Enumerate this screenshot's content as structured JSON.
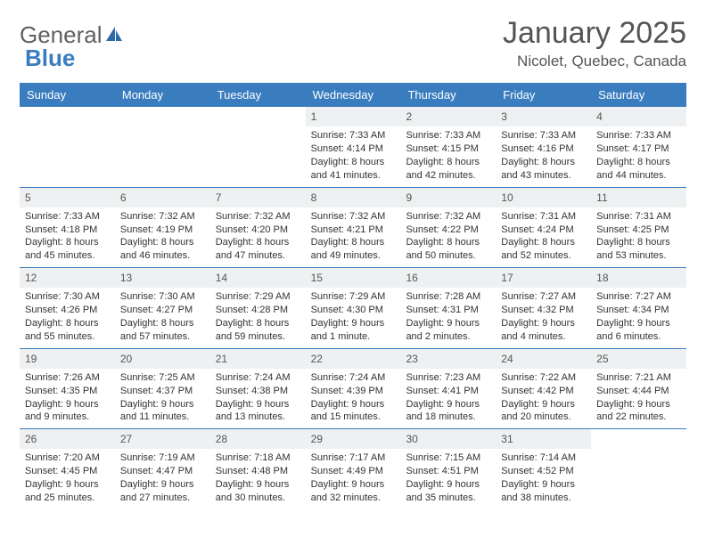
{
  "logo": {
    "textA": "General",
    "textB": "Blue"
  },
  "title": "January 2025",
  "location": "Nicolet, Quebec, Canada",
  "colors": {
    "header_bg": "#3a7dbf",
    "header_text": "#ffffff",
    "daynum_bg": "#eef0f1",
    "row_border": "#3a7dbf",
    "body_text": "#333333",
    "title_text": "#555555"
  },
  "daysOfWeek": [
    "Sunday",
    "Monday",
    "Tuesday",
    "Wednesday",
    "Thursday",
    "Friday",
    "Saturday"
  ],
  "weeks": [
    [
      null,
      null,
      null,
      {
        "d": "1",
        "sr": "Sunrise: 7:33 AM",
        "ss": "Sunset: 4:14 PM",
        "dl1": "Daylight: 8 hours",
        "dl2": "and 41 minutes."
      },
      {
        "d": "2",
        "sr": "Sunrise: 7:33 AM",
        "ss": "Sunset: 4:15 PM",
        "dl1": "Daylight: 8 hours",
        "dl2": "and 42 minutes."
      },
      {
        "d": "3",
        "sr": "Sunrise: 7:33 AM",
        "ss": "Sunset: 4:16 PM",
        "dl1": "Daylight: 8 hours",
        "dl2": "and 43 minutes."
      },
      {
        "d": "4",
        "sr": "Sunrise: 7:33 AM",
        "ss": "Sunset: 4:17 PM",
        "dl1": "Daylight: 8 hours",
        "dl2": "and 44 minutes."
      }
    ],
    [
      {
        "d": "5",
        "sr": "Sunrise: 7:33 AM",
        "ss": "Sunset: 4:18 PM",
        "dl1": "Daylight: 8 hours",
        "dl2": "and 45 minutes."
      },
      {
        "d": "6",
        "sr": "Sunrise: 7:32 AM",
        "ss": "Sunset: 4:19 PM",
        "dl1": "Daylight: 8 hours",
        "dl2": "and 46 minutes."
      },
      {
        "d": "7",
        "sr": "Sunrise: 7:32 AM",
        "ss": "Sunset: 4:20 PM",
        "dl1": "Daylight: 8 hours",
        "dl2": "and 47 minutes."
      },
      {
        "d": "8",
        "sr": "Sunrise: 7:32 AM",
        "ss": "Sunset: 4:21 PM",
        "dl1": "Daylight: 8 hours",
        "dl2": "and 49 minutes."
      },
      {
        "d": "9",
        "sr": "Sunrise: 7:32 AM",
        "ss": "Sunset: 4:22 PM",
        "dl1": "Daylight: 8 hours",
        "dl2": "and 50 minutes."
      },
      {
        "d": "10",
        "sr": "Sunrise: 7:31 AM",
        "ss": "Sunset: 4:24 PM",
        "dl1": "Daylight: 8 hours",
        "dl2": "and 52 minutes."
      },
      {
        "d": "11",
        "sr": "Sunrise: 7:31 AM",
        "ss": "Sunset: 4:25 PM",
        "dl1": "Daylight: 8 hours",
        "dl2": "and 53 minutes."
      }
    ],
    [
      {
        "d": "12",
        "sr": "Sunrise: 7:30 AM",
        "ss": "Sunset: 4:26 PM",
        "dl1": "Daylight: 8 hours",
        "dl2": "and 55 minutes."
      },
      {
        "d": "13",
        "sr": "Sunrise: 7:30 AM",
        "ss": "Sunset: 4:27 PM",
        "dl1": "Daylight: 8 hours",
        "dl2": "and 57 minutes."
      },
      {
        "d": "14",
        "sr": "Sunrise: 7:29 AM",
        "ss": "Sunset: 4:28 PM",
        "dl1": "Daylight: 8 hours",
        "dl2": "and 59 minutes."
      },
      {
        "d": "15",
        "sr": "Sunrise: 7:29 AM",
        "ss": "Sunset: 4:30 PM",
        "dl1": "Daylight: 9 hours",
        "dl2": "and 1 minute."
      },
      {
        "d": "16",
        "sr": "Sunrise: 7:28 AM",
        "ss": "Sunset: 4:31 PM",
        "dl1": "Daylight: 9 hours",
        "dl2": "and 2 minutes."
      },
      {
        "d": "17",
        "sr": "Sunrise: 7:27 AM",
        "ss": "Sunset: 4:32 PM",
        "dl1": "Daylight: 9 hours",
        "dl2": "and 4 minutes."
      },
      {
        "d": "18",
        "sr": "Sunrise: 7:27 AM",
        "ss": "Sunset: 4:34 PM",
        "dl1": "Daylight: 9 hours",
        "dl2": "and 6 minutes."
      }
    ],
    [
      {
        "d": "19",
        "sr": "Sunrise: 7:26 AM",
        "ss": "Sunset: 4:35 PM",
        "dl1": "Daylight: 9 hours",
        "dl2": "and 9 minutes."
      },
      {
        "d": "20",
        "sr": "Sunrise: 7:25 AM",
        "ss": "Sunset: 4:37 PM",
        "dl1": "Daylight: 9 hours",
        "dl2": "and 11 minutes."
      },
      {
        "d": "21",
        "sr": "Sunrise: 7:24 AM",
        "ss": "Sunset: 4:38 PM",
        "dl1": "Daylight: 9 hours",
        "dl2": "and 13 minutes."
      },
      {
        "d": "22",
        "sr": "Sunrise: 7:24 AM",
        "ss": "Sunset: 4:39 PM",
        "dl1": "Daylight: 9 hours",
        "dl2": "and 15 minutes."
      },
      {
        "d": "23",
        "sr": "Sunrise: 7:23 AM",
        "ss": "Sunset: 4:41 PM",
        "dl1": "Daylight: 9 hours",
        "dl2": "and 18 minutes."
      },
      {
        "d": "24",
        "sr": "Sunrise: 7:22 AM",
        "ss": "Sunset: 4:42 PM",
        "dl1": "Daylight: 9 hours",
        "dl2": "and 20 minutes."
      },
      {
        "d": "25",
        "sr": "Sunrise: 7:21 AM",
        "ss": "Sunset: 4:44 PM",
        "dl1": "Daylight: 9 hours",
        "dl2": "and 22 minutes."
      }
    ],
    [
      {
        "d": "26",
        "sr": "Sunrise: 7:20 AM",
        "ss": "Sunset: 4:45 PM",
        "dl1": "Daylight: 9 hours",
        "dl2": "and 25 minutes."
      },
      {
        "d": "27",
        "sr": "Sunrise: 7:19 AM",
        "ss": "Sunset: 4:47 PM",
        "dl1": "Daylight: 9 hours",
        "dl2": "and 27 minutes."
      },
      {
        "d": "28",
        "sr": "Sunrise: 7:18 AM",
        "ss": "Sunset: 4:48 PM",
        "dl1": "Daylight: 9 hours",
        "dl2": "and 30 minutes."
      },
      {
        "d": "29",
        "sr": "Sunrise: 7:17 AM",
        "ss": "Sunset: 4:49 PM",
        "dl1": "Daylight: 9 hours",
        "dl2": "and 32 minutes."
      },
      {
        "d": "30",
        "sr": "Sunrise: 7:15 AM",
        "ss": "Sunset: 4:51 PM",
        "dl1": "Daylight: 9 hours",
        "dl2": "and 35 minutes."
      },
      {
        "d": "31",
        "sr": "Sunrise: 7:14 AM",
        "ss": "Sunset: 4:52 PM",
        "dl1": "Daylight: 9 hours",
        "dl2": "and 38 minutes."
      },
      null
    ]
  ]
}
